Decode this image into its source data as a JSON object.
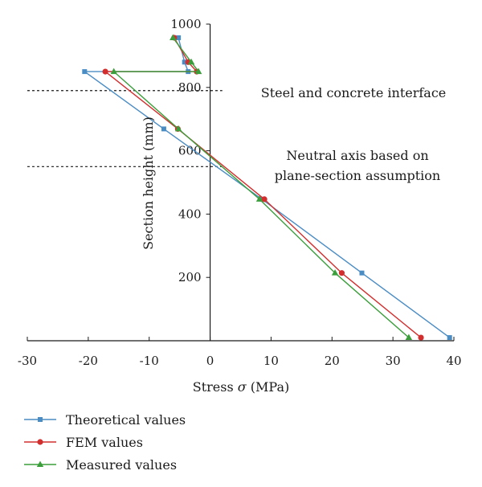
{
  "chart_data": {
    "type": "line",
    "xlabel_prefix": "Stress ",
    "xlabel_symbol": "σ",
    "xlabel_suffix": " (MPa)",
    "ylabel": "Section height (mm)",
    "xlim": [
      -30,
      40
    ],
    "ylim": [
      0,
      1000
    ],
    "x_ticks": [
      -30,
      -20,
      -10,
      0,
      10,
      20,
      30,
      40
    ],
    "y_ticks": [
      200,
      400,
      600,
      800,
      1000
    ],
    "grid": false,
    "legend_position": "bottom-left",
    "annotations": [
      {
        "key": "interface",
        "y": 790,
        "x_from": -30,
        "x_to": 2,
        "lines": [
          "Steel and concrete interface"
        ]
      },
      {
        "key": "neutral",
        "y": 550,
        "x_from": -30,
        "x_to": 2,
        "lines": [
          "Neutral axis based on",
          "plane-section assumption"
        ]
      }
    ],
    "series": [
      {
        "name": "Theoretical values",
        "color": "#4a8cc4",
        "marker": "square",
        "points": [
          [
            39.3,
            10
          ],
          [
            24.9,
            214
          ],
          [
            8.5,
            447
          ],
          [
            -7.6,
            669
          ],
          [
            -20.6,
            850
          ],
          [
            -3.6,
            850
          ],
          [
            -4.2,
            880
          ],
          [
            -5.2,
            957
          ]
        ]
      },
      {
        "name": "FEM values",
        "color": "#d22e2e",
        "marker": "circle",
        "points": [
          [
            34.6,
            10
          ],
          [
            21.6,
            214
          ],
          [
            8.9,
            447
          ],
          [
            -5.3,
            669
          ],
          [
            -17.2,
            850
          ],
          [
            -2.2,
            850
          ],
          [
            -3.6,
            880
          ],
          [
            -5.9,
            957
          ]
        ]
      },
      {
        "name": "Measured values",
        "color": "#3a9e3a",
        "marker": "triangle",
        "points": [
          [
            32.6,
            10
          ],
          [
            20.5,
            214
          ],
          [
            8.1,
            447
          ],
          [
            -5.2,
            669
          ],
          [
            -15.8,
            850
          ],
          [
            -1.9,
            850
          ],
          [
            -3.1,
            880
          ],
          [
            -6.1,
            957
          ]
        ]
      }
    ]
  }
}
